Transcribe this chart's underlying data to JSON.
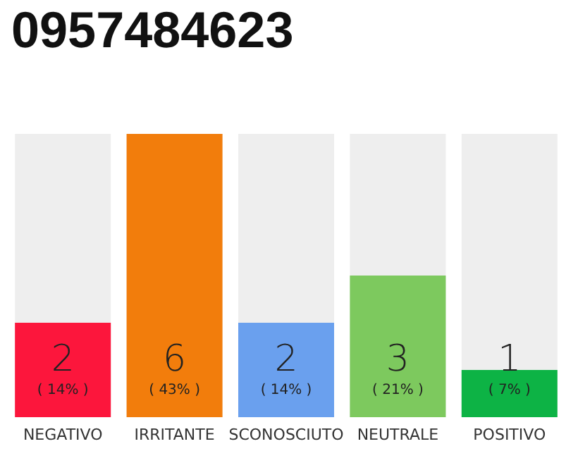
{
  "chart_data": {
    "type": "bar",
    "title": "0957484623",
    "categories": [
      "NEGATIVO",
      "IRRITANTE",
      "SCONOSCIUTO",
      "NEUTRALE",
      "POSITIVO"
    ],
    "values": [
      2,
      6,
      2,
      3,
      1
    ],
    "colors": [
      "#fc163c",
      "#f27d0c",
      "#6aa0ee",
      "#7dc95e",
      "#0db345"
    ],
    "value_labels": [
      "2\n( 14% )",
      "6\n( 43% )",
      "2\n( 14% )",
      "3\n( 21% )",
      "1\n( 7% )"
    ]
  }
}
